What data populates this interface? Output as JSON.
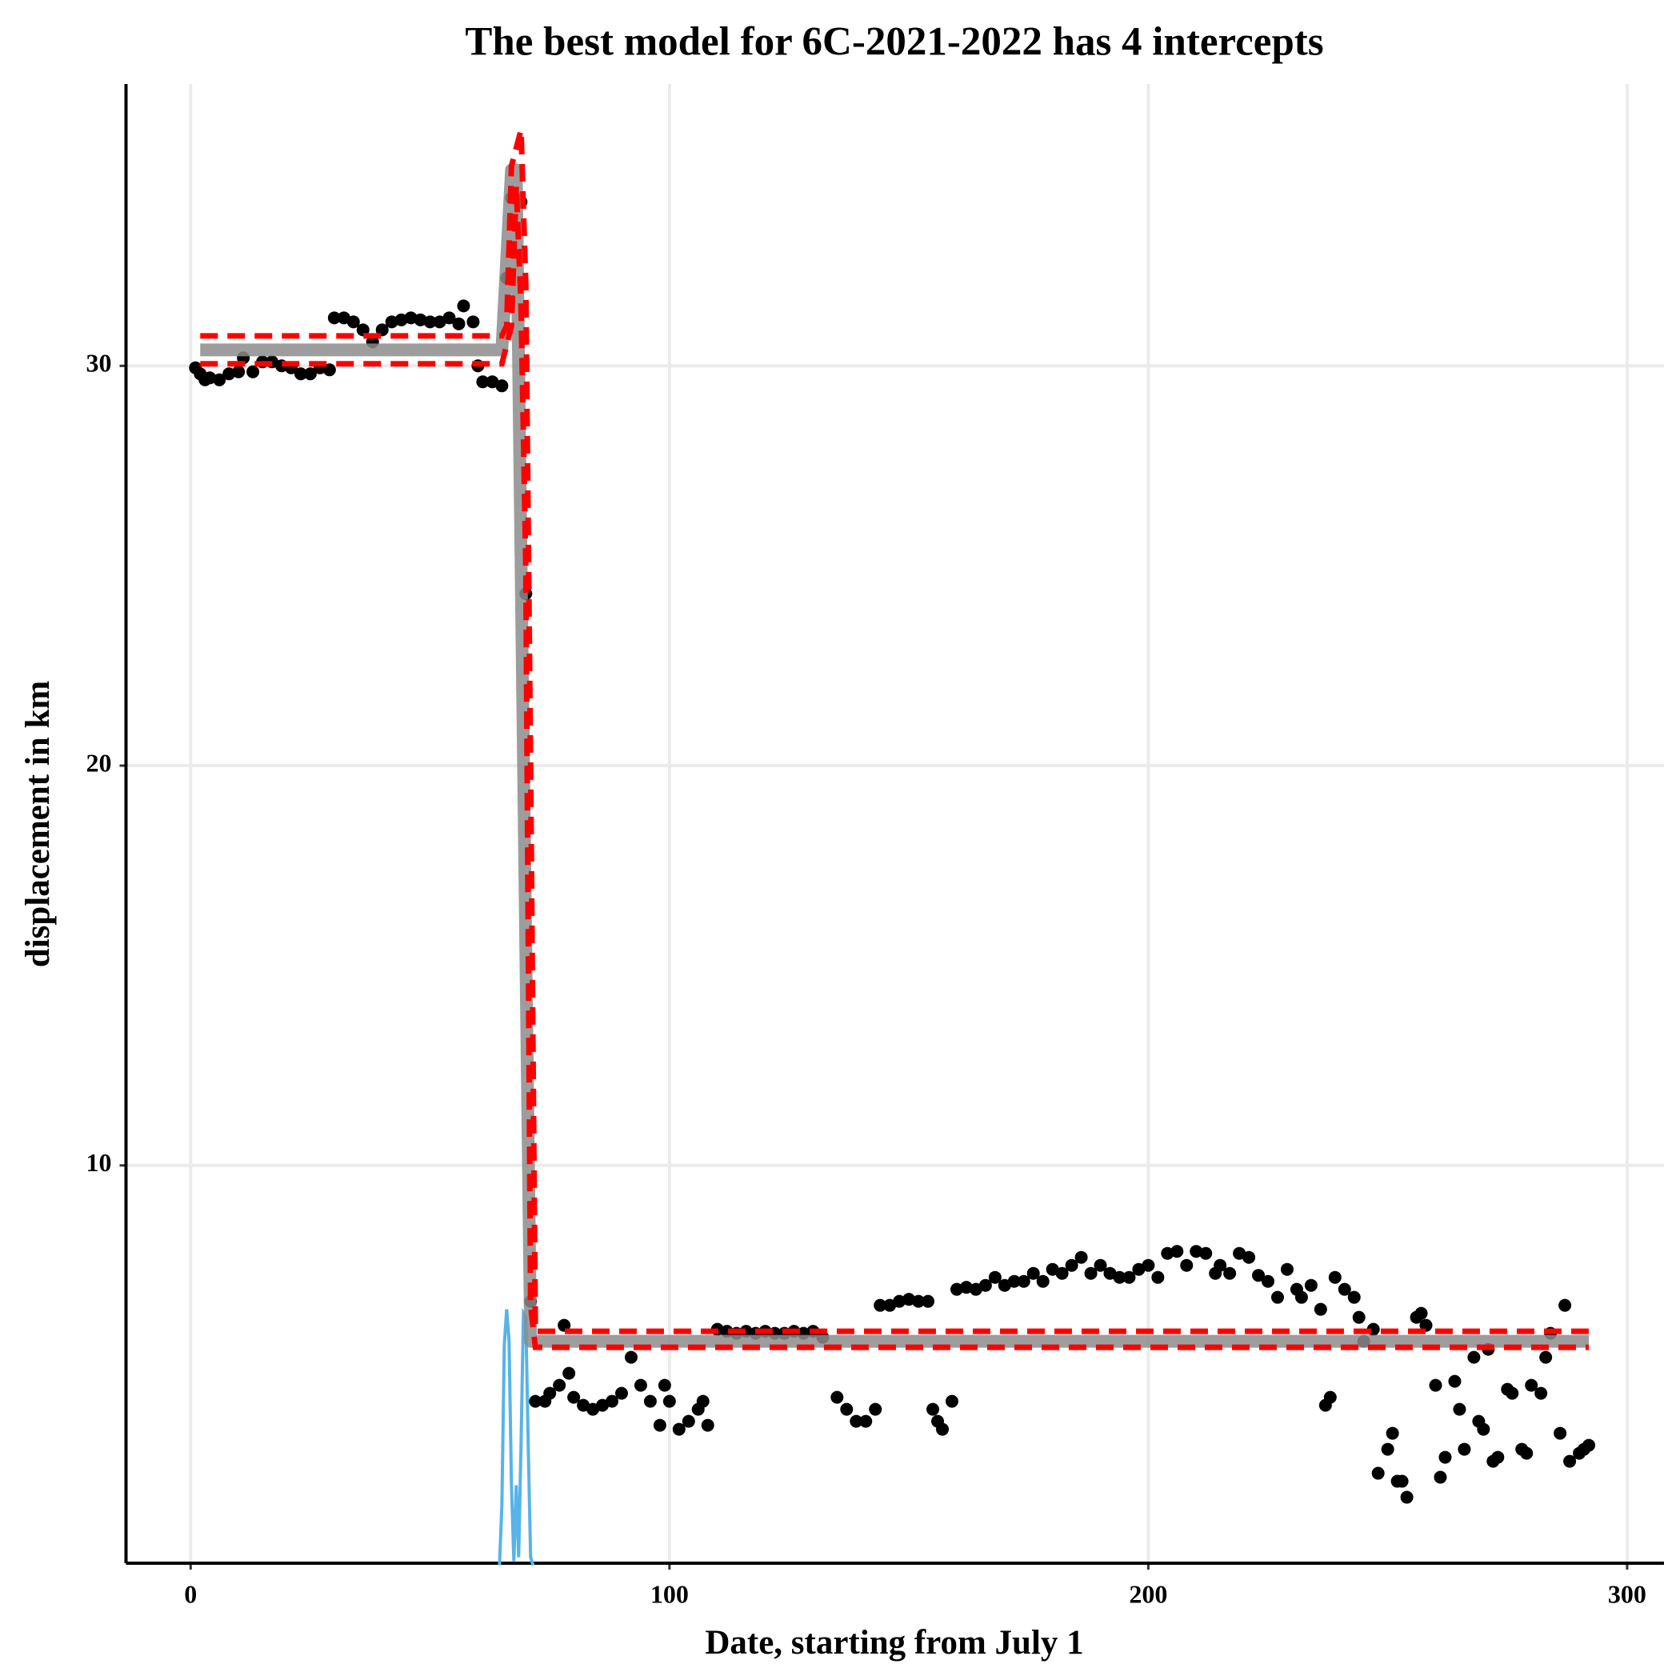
{
  "chart_data": {
    "type": "scatter",
    "title": "The best model for 6C-2021-2022 has 4 intercepts",
    "x_label": "Date, starting from July 1",
    "y_label": "displacement in km",
    "xlim": [
      -13.5,
      307.7
    ],
    "ylim": [
      0.05,
      37.05
    ],
    "xticks": [
      0,
      100,
      200,
      300
    ],
    "yticks": [
      10,
      20,
      30
    ],
    "grid": true,
    "series": [
      {
        "mode": "density",
        "color": "#56b4e9",
        "x": [
          64.5,
          65,
          65.5,
          66,
          66.5,
          67,
          67.5,
          68,
          68.5,
          69,
          69.5,
          70,
          70.5,
          71,
          71.5
        ],
        "values": [
          0,
          1.5,
          5.5,
          6.4,
          5.6,
          2,
          0.1,
          2,
          0.2,
          3,
          6.3,
          6.2,
          3,
          0.2,
          0
        ]
      },
      {
        "mode": "points",
        "color": "#000000",
        "x": [
          1,
          2,
          3,
          4,
          6,
          8,
          10,
          11,
          13,
          15,
          17,
          19,
          21,
          23,
          25,
          27,
          29,
          30,
          32,
          34,
          36,
          38,
          40,
          42,
          44,
          46,
          48,
          50,
          52,
          54,
          56,
          57,
          59,
          60,
          61,
          63,
          65,
          66,
          67,
          68,
          69,
          70,
          71,
          72,
          74,
          75,
          77,
          78,
          79,
          80,
          82,
          84,
          86,
          88,
          90,
          92,
          94,
          96,
          98,
          99,
          100,
          102,
          104,
          106,
          107,
          108,
          110,
          112,
          114,
          116,
          118,
          120,
          122,
          124,
          126,
          128,
          130,
          132,
          135,
          137,
          139,
          141,
          143,
          144,
          146,
          148,
          150,
          152,
          154,
          155,
          156,
          157,
          159,
          160,
          162,
          164,
          166,
          168,
          170,
          172,
          174,
          176,
          178,
          180,
          182,
          184,
          186,
          188,
          190,
          192,
          194,
          196,
          198,
          200,
          202,
          204,
          206,
          208,
          210,
          212,
          214,
          215,
          217,
          219,
          221,
          223,
          225,
          227,
          229,
          231,
          232,
          234,
          236,
          237,
          238,
          239,
          241,
          243,
          244,
          245,
          247,
          248,
          250,
          251,
          252,
          253,
          254,
          256,
          257,
          258,
          260,
          261,
          262,
          264,
          265,
          266,
          268,
          269,
          270,
          271,
          272,
          273,
          275,
          276,
          278,
          279,
          280,
          282,
          283,
          284,
          286,
          287,
          288,
          290,
          291,
          292
        ],
        "values": [
          29.95,
          29.8,
          29.65,
          29.7,
          29.65,
          29.8,
          29.85,
          30.2,
          29.85,
          30.1,
          30.1,
          30.0,
          29.95,
          29.8,
          29.8,
          29.95,
          29.9,
          31.2,
          31.2,
          31.1,
          30.9,
          30.6,
          30.9,
          31.1,
          31.15,
          31.2,
          31.15,
          31.1,
          31.1,
          31.2,
          31.05,
          31.5,
          31.1,
          30.0,
          29.6,
          29.6,
          29.5,
          32.2,
          34.2,
          34.2,
          34.1,
          24.3,
          6.6,
          4.1,
          4.1,
          4.3,
          4.5,
          6.0,
          4.8,
          4.2,
          4.0,
          3.9,
          4.0,
          4.1,
          4.3,
          5.2,
          4.5,
          4.1,
          3.5,
          4.5,
          4.1,
          3.4,
          3.6,
          3.9,
          4.1,
          3.5,
          5.9,
          5.85,
          5.8,
          5.85,
          5.8,
          5.85,
          5.8,
          5.8,
          5.85,
          5.8,
          5.85,
          5.7,
          4.2,
          3.9,
          3.6,
          3.6,
          3.9,
          6.5,
          6.5,
          6.6,
          6.65,
          6.6,
          6.6,
          3.9,
          3.6,
          3.4,
          4.1,
          6.9,
          6.95,
          6.9,
          7.0,
          7.2,
          7.0,
          7.1,
          7.1,
          7.3,
          7.1,
          7.4,
          7.3,
          7.5,
          7.7,
          7.3,
          7.5,
          7.3,
          7.2,
          7.2,
          7.4,
          7.5,
          7.2,
          7.8,
          7.85,
          7.5,
          7.85,
          7.8,
          7.3,
          7.5,
          7.3,
          7.8,
          7.7,
          7.25,
          7.1,
          6.7,
          7.4,
          6.9,
          6.7,
          7.0,
          6.4,
          4.0,
          4.2,
          7.2,
          6.9,
          6.7,
          6.2,
          5.6,
          5.9,
          2.3,
          2.9,
          3.3,
          2.1,
          2.1,
          1.7,
          6.2,
          6.3,
          6.0,
          4.5,
          2.2,
          2.7,
          4.6,
          3.9,
          2.9,
          5.2,
          3.6,
          3.4,
          5.4,
          2.6,
          2.7,
          4.4,
          4.3,
          2.9,
          2.8,
          4.5,
          4.3,
          5.2,
          5.8,
          3.3,
          6.5,
          2.6,
          2.8,
          2.9,
          3.0
        ]
      },
      {
        "mode": "line",
        "color": "#8c8c8c",
        "x": [
          2,
          65,
          67,
          68,
          71,
          292
        ],
        "values": [
          30.4,
          30.4,
          34.9,
          34.9,
          5.6,
          5.6
        ]
      },
      {
        "mode": "dashed",
        "color": "#ff0000",
        "x": [
          2,
          65,
          66,
          67,
          69,
          70,
          71,
          72,
          292
        ],
        "values": [
          30.75,
          30.75,
          31,
          35,
          35.9,
          32,
          20,
          5.85,
          5.85
        ]
      },
      {
        "mode": "dashed",
        "color": "#ff0000",
        "x": [
          2,
          65,
          67,
          68,
          69,
          70,
          71,
          72,
          292
        ],
        "values": [
          30.05,
          30.05,
          31,
          34.5,
          31.5,
          25,
          6.5,
          5.45,
          5.45
        ]
      }
    ]
  }
}
